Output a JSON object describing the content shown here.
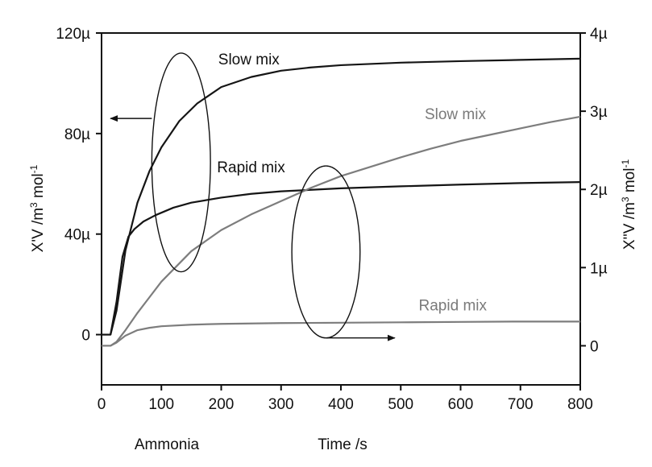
{
  "chart_data": {
    "type": "line",
    "xlabel": "Time /s",
    "x_annotation": "Ammonia",
    "xlim": [
      0,
      800
    ],
    "x_ticks": [
      0,
      100,
      200,
      300,
      400,
      500,
      600,
      700,
      800
    ],
    "x_tick_labels": [
      "0",
      "100",
      "200",
      "300",
      "400",
      "500",
      "600",
      "700",
      "800"
    ],
    "y_left": {
      "label_main": "X'V /m",
      "label_sup1": "3",
      "label_mid": " mol",
      "label_sup2": "-1",
      "range": [
        -2e-05,
        0.00012
      ],
      "ticks": [
        0,
        4e-05,
        8e-05,
        0.00012
      ],
      "tick_labels": [
        "0",
        "40µ",
        "80µ",
        "120µ"
      ]
    },
    "y_right": {
      "label_main": "X''V /m",
      "label_sup1": "3",
      "label_mid": " mol",
      "label_sup2": "-1",
      "range": [
        -5e-07,
        4e-06
      ],
      "ticks": [
        0,
        1e-06,
        2e-06,
        3e-06,
        4e-06
      ],
      "tick_labels": [
        "0",
        "1µ",
        "2µ",
        "3µ",
        "4µ"
      ]
    },
    "series": [
      {
        "name": "Slow mix",
        "axis": "left",
        "color": "#151515",
        "x": [
          0,
          15,
          25,
          40,
          60,
          80,
          100,
          130,
          160,
          200,
          250,
          300,
          350,
          400,
          500,
          600,
          700,
          800
        ],
        "y": [
          0,
          0,
          9.5e-06,
          3.35e-05,
          5.25e-05,
          6.5e-05,
          7.45e-05,
          8.5e-05,
          9.2e-05,
          9.85e-05,
          0.0001025,
          0.000105,
          0.0001063,
          0.0001072,
          0.0001082,
          0.0001088,
          0.0001093,
          0.0001098
        ]
      },
      {
        "name": "Rapid mix",
        "axis": "left",
        "color": "#151515",
        "x": [
          0,
          15,
          25,
          35,
          45,
          55,
          70,
          90,
          120,
          150,
          200,
          250,
          300,
          400,
          500,
          600,
          700,
          800
        ],
        "y": [
          0,
          0,
          1.3e-05,
          3.1e-05,
          3.9e-05,
          4.2e-05,
          4.5e-05,
          4.75e-05,
          5.05e-05,
          5.25e-05,
          5.45e-05,
          5.6e-05,
          5.7e-05,
          5.82e-05,
          5.9e-05,
          5.97e-05,
          6.03e-05,
          6.07e-05
        ]
      },
      {
        "name": "Slow mix",
        "axis": "right",
        "color": "#7d7d7d",
        "x": [
          0,
          15,
          25,
          40,
          60,
          80,
          100,
          150,
          200,
          250,
          300,
          350,
          400,
          450,
          500,
          550,
          600,
          650,
          700,
          750,
          800
        ],
        "y": [
          0,
          0,
          5e-08,
          2e-07,
          4.2e-07,
          6.2e-07,
          8.2e-07,
          1.21e-06,
          1.48e-06,
          1.68e-06,
          1.85e-06,
          2.02e-06,
          2.17e-06,
          2.29e-06,
          2.41e-06,
          2.52e-06,
          2.62e-06,
          2.7e-06,
          2.78e-06,
          2.86e-06,
          2.93e-06
        ]
      },
      {
        "name": "Rapid mix",
        "axis": "right",
        "color": "#7d7d7d",
        "x": [
          0,
          15,
          25,
          40,
          60,
          80,
          100,
          150,
          200,
          300,
          400,
          500,
          600,
          700,
          800
        ],
        "y": [
          0,
          0,
          4e-08,
          1.3e-07,
          2e-07,
          2.3e-07,
          2.5e-07,
          2.7e-07,
          2.8e-07,
          2.9e-07,
          2.95e-07,
          3e-07,
          3.05e-07,
          3.1e-07,
          3.1e-07
        ]
      }
    ],
    "annotations": [
      {
        "text": "Slow mix",
        "color": "black",
        "x": 195,
        "y_axis": "left",
        "y": 0.0001075
      },
      {
        "text": "Rapid mix",
        "color": "black",
        "x": 193,
        "y_axis": "left",
        "y": 6.45e-05
      },
      {
        "text": "Slow mix",
        "color": "gray",
        "x": 540,
        "y_axis": "right",
        "y": 2.9e-06
      },
      {
        "text": "Rapid mix",
        "color": "gray",
        "x": 530,
        "y_axis": "right",
        "y": 4.5e-07
      }
    ],
    "ellipses": [
      {
        "cx": 133,
        "y_axis": "left",
        "cy": 6.85e-05,
        "rx_data": 49,
        "ry_data": 4.35e-05,
        "arrow": "left",
        "arrow_to_x": 15,
        "arrow_y": 8.6e-05
      },
      {
        "cx": 375,
        "y_axis": "right",
        "cy": 1.2e-06,
        "rx_data": 57,
        "ry_data": 1.1e-06,
        "arrow": "right",
        "arrow_to_x": 490,
        "arrow_y": 1e-07
      }
    ],
    "grid": false,
    "legend": "none"
  }
}
